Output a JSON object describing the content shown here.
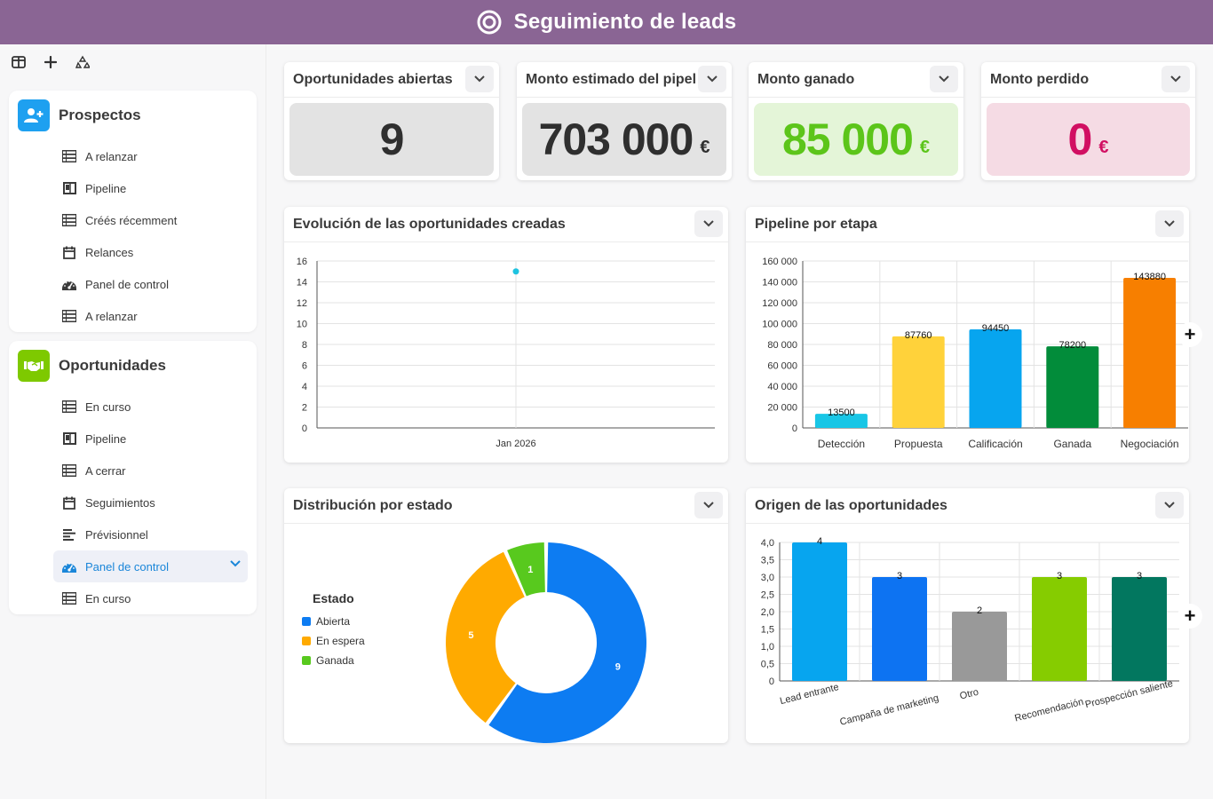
{
  "header": {
    "title": "Seguimiento de leads",
    "logo_icon": "target-icon",
    "background": "#8a6594"
  },
  "sidebar": {
    "toolbar": [
      {
        "icon": "panel-layout-icon"
      },
      {
        "icon": "plus-icon"
      },
      {
        "icon": "recycle-icon"
      }
    ],
    "groups": [
      {
        "title": "Prospectos",
        "icon": "add-user-icon",
        "color": "#1ea0f0",
        "items": [
          {
            "label": "A relanzar",
            "icon": "table-icon"
          },
          {
            "label": "Pipeline",
            "icon": "kanban-icon"
          },
          {
            "label": "Créés récemment",
            "icon": "table-icon"
          },
          {
            "label": "Relances",
            "icon": "calendar-icon"
          },
          {
            "label": "Panel de control",
            "icon": "dashboard-icon"
          },
          {
            "label": "A relanzar",
            "icon": "table-icon"
          }
        ]
      },
      {
        "title": "Oportunidades",
        "icon": "handshake-icon",
        "color": "#7ec900",
        "items": [
          {
            "label": "En curso",
            "icon": "table-icon"
          },
          {
            "label": "Pipeline",
            "icon": "kanban-icon"
          },
          {
            "label": "A cerrar",
            "icon": "table-icon"
          },
          {
            "label": "Seguimientos",
            "icon": "calendar-icon"
          },
          {
            "label": "Prévisionnel",
            "icon": "gantt-icon"
          },
          {
            "label": "Panel de control",
            "icon": "dashboard-icon",
            "active": true
          },
          {
            "label": "En curso",
            "icon": "table-icon"
          }
        ]
      }
    ]
  },
  "kpis": [
    {
      "title": "Oportunidades abiertas",
      "value": "9",
      "unit": "",
      "bg": "#e3e3e3",
      "color": "#2f2f2f"
    },
    {
      "title": "Monto estimado del pipel",
      "value": "703 000",
      "unit": "€",
      "bg": "#e3e3e3",
      "color": "#2f2f2f"
    },
    {
      "title": "Monto ganado",
      "value": "85 000",
      "unit": "€",
      "bg": "#e4f5d8",
      "color": "#5cc51a"
    },
    {
      "title": "Monto perdido",
      "value": "0",
      "unit": "€",
      "bg": "#f5dbe4",
      "color": "#d10f62"
    }
  ],
  "panels": {
    "evolution": "Evolución de las oportunidades creadas",
    "pipeline": "Pipeline por etapa",
    "distribution": "Distribución por estado",
    "origin": "Origen de las oportunidades"
  },
  "chart_data": [
    {
      "type": "scatter",
      "title": "Evolución de las oportunidades creadas",
      "x": [
        "Jan 2026"
      ],
      "values": [
        15
      ],
      "ylim": [
        0,
        16
      ],
      "yticks": [
        "0",
        "2",
        "4",
        "6",
        "8",
        "10",
        "12",
        "14",
        "16"
      ],
      "color": "#1ec3e0",
      "grid": true
    },
    {
      "type": "bar",
      "title": "Pipeline por etapa",
      "categories": [
        "Detección",
        "Propuesta",
        "Calificación",
        "Ganada",
        "Negociación"
      ],
      "values": [
        13500,
        87760,
        94450,
        78200,
        143880
      ],
      "colors": [
        "#18c6e6",
        "#ffd23a",
        "#07a5ef",
        "#028c3a",
        "#f77f00"
      ],
      "ylim": [
        0,
        160000
      ],
      "yticks": [
        "0",
        "20 000",
        "40 000",
        "60 000",
        "80 000",
        "100 000",
        "120 000",
        "140 000",
        "160 000"
      ],
      "grid": true
    },
    {
      "type": "pie",
      "title": "Distribución por estado",
      "legend_title": "Estado",
      "legend_position": "left",
      "labels": [
        "Abierta",
        "En espera",
        "Ganada"
      ],
      "values": [
        9,
        5,
        1
      ],
      "colors": [
        "#0d7cf2",
        "#ffaa00",
        "#58c91e"
      ]
    },
    {
      "type": "bar",
      "title": "Origen de las oportunidades",
      "categories": [
        "Lead entrante",
        "Campaña de marketing",
        "Otro",
        "Recomendación",
        "Prospección saliente"
      ],
      "values": [
        4,
        3,
        2,
        3,
        3
      ],
      "colors": [
        "#07a5ef",
        "#0d73f2",
        "#999999",
        "#86cc00",
        "#02775f"
      ],
      "ylim": [
        0,
        4
      ],
      "yticks": [
        "0",
        "0,5",
        "1,0",
        "1,5",
        "2,0",
        "2,5",
        "3,0",
        "3,5",
        "4,0"
      ],
      "grid": true
    }
  ]
}
